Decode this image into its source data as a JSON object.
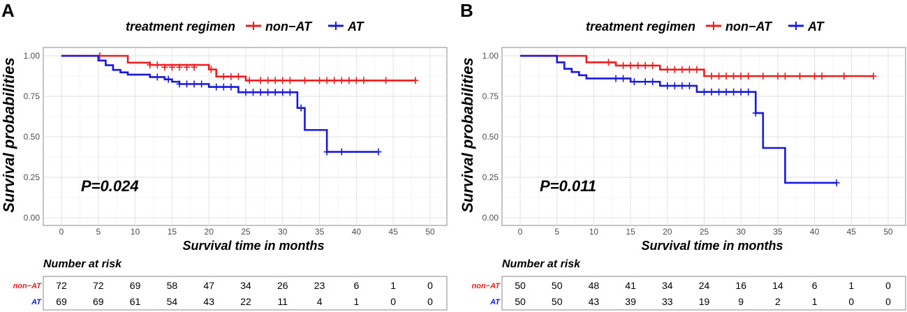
{
  "chart_data": [
    {
      "type": "line",
      "panel_label": "A",
      "legend_title": "treatment regimen",
      "legend_position": "top",
      "xlabel": "Survival time in months",
      "ylabel": "Survival probabilities",
      "xlim": [
        0,
        50
      ],
      "ylim": [
        0,
        1
      ],
      "x_ticks": [
        "0",
        "5",
        "10",
        "15",
        "20",
        "25",
        "30",
        "35",
        "40",
        "45",
        "50"
      ],
      "y_ticks": [
        "0.00",
        "0.25",
        "0.50",
        "0.75",
        "1.00"
      ],
      "grid": true,
      "pvalue": "P=0.024",
      "series": [
        {
          "name": "non−AT",
          "color": "#ee1c1c",
          "steps": [
            [
              0,
              1.0
            ],
            [
              9,
              0.958
            ],
            [
              12,
              0.944
            ],
            [
              20,
              0.916
            ],
            [
              21,
              0.872
            ],
            [
              25,
              0.848
            ],
            [
              48,
              0.848
            ]
          ],
          "censors": [
            [
              5.2,
              1.0
            ],
            [
              12,
              0.944
            ],
            [
              13,
              0.944
            ],
            [
              14,
              0.93
            ],
            [
              15,
              0.93
            ],
            [
              16,
              0.93
            ],
            [
              17,
              0.93
            ],
            [
              18,
              0.93
            ],
            [
              20.3,
              0.916
            ],
            [
              22,
              0.872
            ],
            [
              23,
              0.872
            ],
            [
              24,
              0.872
            ],
            [
              25.5,
              0.848
            ],
            [
              27,
              0.848
            ],
            [
              28,
              0.848
            ],
            [
              29,
              0.848
            ],
            [
              30,
              0.848
            ],
            [
              31,
              0.848
            ],
            [
              33,
              0.848
            ],
            [
              35,
              0.848
            ],
            [
              36,
              0.848
            ],
            [
              37,
              0.848
            ],
            [
              38,
              0.848
            ],
            [
              39,
              0.848
            ],
            [
              40,
              0.848
            ],
            [
              41,
              0.848
            ],
            [
              44,
              0.848
            ],
            [
              48,
              0.848
            ]
          ]
        },
        {
          "name": "AT",
          "color": "#1818e0",
          "steps": [
            [
              0,
              1.0
            ],
            [
              5,
              0.971
            ],
            [
              6,
              0.942
            ],
            [
              7,
              0.913
            ],
            [
              8,
              0.898
            ],
            [
              9,
              0.884
            ],
            [
              12,
              0.869
            ],
            [
              14,
              0.855
            ],
            [
              15,
              0.84
            ],
            [
              16,
              0.826
            ],
            [
              20,
              0.808
            ],
            [
              24,
              0.775
            ],
            [
              32,
              0.678
            ],
            [
              33,
              0.542
            ],
            [
              36,
              0.407
            ],
            [
              43,
              0.407
            ]
          ],
          "censors": [
            [
              13,
              0.869
            ],
            [
              14.5,
              0.855
            ],
            [
              16,
              0.826
            ],
            [
              17,
              0.826
            ],
            [
              18,
              0.826
            ],
            [
              19,
              0.826
            ],
            [
              21,
              0.808
            ],
            [
              22,
              0.808
            ],
            [
              23,
              0.808
            ],
            [
              25,
              0.775
            ],
            [
              26,
              0.775
            ],
            [
              27,
              0.775
            ],
            [
              28,
              0.775
            ],
            [
              29,
              0.775
            ],
            [
              30,
              0.775
            ],
            [
              31,
              0.775
            ],
            [
              32.5,
              0.678
            ],
            [
              36,
              0.407
            ],
            [
              38,
              0.407
            ],
            [
              43,
              0.407
            ]
          ]
        }
      ],
      "risk_table": {
        "title": "Number at risk",
        "rows": [
          {
            "name": "non−AT",
            "color": "#ee1c1c",
            "values": [
              "72",
              "72",
              "69",
              "58",
              "47",
              "34",
              "26",
              "23",
              "6",
              "1",
              "0"
            ]
          },
          {
            "name": "AT",
            "color": "#1818e0",
            "values": [
              "69",
              "69",
              "61",
              "54",
              "43",
              "22",
              "11",
              "4",
              "1",
              "0",
              "0"
            ]
          }
        ]
      }
    },
    {
      "type": "line",
      "panel_label": "B",
      "legend_title": "treatment regimen",
      "legend_position": "top",
      "xlabel": "Survival time in months",
      "ylabel": "Survival probabilities",
      "xlim": [
        0,
        50
      ],
      "ylim": [
        0,
        1
      ],
      "x_ticks": [
        "0",
        "5",
        "10",
        "15",
        "20",
        "25",
        "30",
        "35",
        "40",
        "45",
        "50"
      ],
      "y_ticks": [
        "0.00",
        "0.25",
        "0.50",
        "0.75",
        "1.00"
      ],
      "grid": true,
      "pvalue": "P=0.011",
      "series": [
        {
          "name": "non−AT",
          "color": "#ee1c1c",
          "steps": [
            [
              0,
              1.0
            ],
            [
              9,
              0.96
            ],
            [
              12,
              0.96
            ],
            [
              13,
              0.94
            ],
            [
              19,
              0.915
            ],
            [
              25,
              0.875
            ],
            [
              48,
              0.875
            ]
          ],
          "censors": [
            [
              12,
              0.96
            ],
            [
              14,
              0.94
            ],
            [
              15,
              0.94
            ],
            [
              16,
              0.94
            ],
            [
              17,
              0.94
            ],
            [
              18,
              0.94
            ],
            [
              20,
              0.915
            ],
            [
              21,
              0.915
            ],
            [
              22,
              0.915
            ],
            [
              23,
              0.915
            ],
            [
              24,
              0.915
            ],
            [
              26,
              0.875
            ],
            [
              27,
              0.875
            ],
            [
              28,
              0.875
            ],
            [
              29,
              0.875
            ],
            [
              30,
              0.875
            ],
            [
              31,
              0.875
            ],
            [
              33,
              0.875
            ],
            [
              35,
              0.875
            ],
            [
              36,
              0.875
            ],
            [
              38,
              0.875
            ],
            [
              40,
              0.875
            ],
            [
              41,
              0.875
            ],
            [
              44,
              0.875
            ],
            [
              48,
              0.875
            ]
          ]
        },
        {
          "name": "AT",
          "color": "#1818e0",
          "steps": [
            [
              0,
              1.0
            ],
            [
              5,
              0.96
            ],
            [
              6,
              0.92
            ],
            [
              7,
              0.9
            ],
            [
              8,
              0.88
            ],
            [
              9,
              0.86
            ],
            [
              15,
              0.84
            ],
            [
              19,
              0.815
            ],
            [
              24,
              0.777
            ],
            [
              32,
              0.647
            ],
            [
              33,
              0.431
            ],
            [
              36,
              0.216
            ],
            [
              43,
              0.216
            ]
          ],
          "censors": [
            [
              13,
              0.86
            ],
            [
              14,
              0.86
            ],
            [
              15.5,
              0.84
            ],
            [
              17,
              0.84
            ],
            [
              18,
              0.84
            ],
            [
              20,
              0.815
            ],
            [
              21,
              0.815
            ],
            [
              22,
              0.815
            ],
            [
              23,
              0.815
            ],
            [
              25,
              0.777
            ],
            [
              26,
              0.777
            ],
            [
              27,
              0.777
            ],
            [
              28,
              0.777
            ],
            [
              29,
              0.777
            ],
            [
              30,
              0.777
            ],
            [
              31,
              0.777
            ],
            [
              32,
              0.647
            ],
            [
              43,
              0.216
            ]
          ]
        }
      ],
      "risk_table": {
        "title": "Number at risk",
        "rows": [
          {
            "name": "non−AT",
            "color": "#ee1c1c",
            "values": [
              "50",
              "50",
              "48",
              "41",
              "34",
              "24",
              "16",
              "14",
              "6",
              "1",
              "0"
            ]
          },
          {
            "name": "AT",
            "color": "#1818e0",
            "values": [
              "50",
              "50",
              "43",
              "39",
              "33",
              "19",
              "9",
              "2",
              "1",
              "0",
              "0"
            ]
          }
        ]
      }
    }
  ]
}
